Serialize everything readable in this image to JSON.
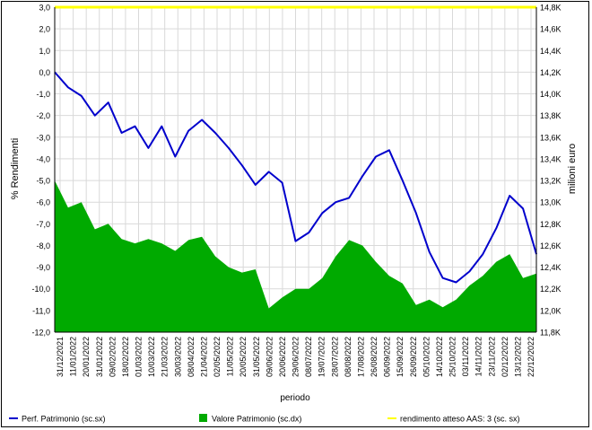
{
  "chart_data": {
    "type": "line",
    "xlabel": "periodo",
    "ylabel_left": "% Rendimenti",
    "ylabel_right": "milioni euro",
    "ylim_left": [
      -12,
      3
    ],
    "ylim_right": [
      11800,
      14800
    ],
    "yticks_left": [
      "3,0",
      "2,0",
      "1,0",
      "0,0",
      "-1,0",
      "-2,0",
      "-3,0",
      "-4,0",
      "-5,0",
      "-6,0",
      "-7,0",
      "-8,0",
      "-9,0",
      "-10,0",
      "-11,0",
      "-12,0"
    ],
    "yticks_right": [
      "14,8K",
      "14,6K",
      "14,4K",
      "14,2K",
      "14,0K",
      "13,8K",
      "13,6K",
      "13,4K",
      "13,2K",
      "13,0K",
      "12,8K",
      "12,6K",
      "12,4K",
      "12,2K",
      "12,0K",
      "11,8K"
    ],
    "x_tick_labels": [
      "31/12/2021",
      "11/01/2022",
      "20/01/2022",
      "31/01/2022",
      "09/02/2022",
      "18/02/2022",
      "01/03/2022",
      "10/03/2022",
      "21/03/2022",
      "30/03/2022",
      "08/04/2022",
      "21/04/2022",
      "02/05/2022",
      "11/05/2022",
      "20/05/2022",
      "31/05/2022",
      "09/06/2022",
      "20/06/2022",
      "29/06/2022",
      "08/07/2022",
      "19/07/2022",
      "28/07/2022",
      "08/08/2022",
      "17/08/2022",
      "26/08/2022",
      "06/09/2022",
      "15/09/2022",
      "26/09/2022",
      "05/10/2022",
      "14/10/2022",
      "25/10/2022",
      "03/11/2022",
      "14/11/2022",
      "23/11/2022",
      "02/12/2022",
      "13/12/2022",
      "22/12/2022"
    ],
    "grid": true,
    "legend_position": "bottom",
    "series": [
      {
        "name": "Perf. Patrimonio (sc.sx)",
        "axis": "left",
        "color": "#0000CC",
        "values": [
          0.0,
          -0.7,
          -1.1,
          -2.0,
          -1.4,
          -2.8,
          -2.5,
          -3.5,
          -2.5,
          -3.9,
          -2.7,
          -2.2,
          -2.8,
          -3.5,
          -4.3,
          -5.2,
          -4.6,
          -5.1,
          -7.8,
          -7.4,
          -6.5,
          -6.0,
          -5.8,
          -4.8,
          -3.9,
          -3.6,
          -5.0,
          -6.5,
          -8.3,
          -9.5,
          -9.7,
          -9.2,
          -8.4,
          -7.2,
          -5.7,
          -6.3,
          -8.4
        ]
      },
      {
        "name": "Valore  Patrimonio (sc.dx)",
        "axis": "right",
        "type": "area",
        "color": "#00AA00",
        "values": [
          13200,
          12950,
          13000,
          12750,
          12800,
          12660,
          12620,
          12660,
          12620,
          12550,
          12650,
          12680,
          12500,
          12400,
          12350,
          12380,
          12020,
          12120,
          12200,
          12200,
          12300,
          12500,
          12650,
          12600,
          12450,
          12320,
          12250,
          12050,
          12100,
          12030,
          12100,
          12230,
          12320,
          12450,
          12520,
          12300,
          12340
        ]
      },
      {
        "name": "rendimento atteso AAS: 3 (sc. sx)",
        "axis": "left",
        "color": "#FFFF00",
        "values": [
          3.0,
          3.0,
          3.0,
          3.0,
          3.0,
          3.0,
          3.0,
          3.0,
          3.0,
          3.0,
          3.0,
          3.0,
          3.0,
          3.0,
          3.0,
          3.0,
          3.0,
          3.0,
          3.0,
          3.0,
          3.0,
          3.0,
          3.0,
          3.0,
          3.0,
          3.0,
          3.0,
          3.0,
          3.0,
          3.0,
          3.0,
          3.0,
          3.0,
          3.0,
          3.0,
          3.0,
          3.0
        ]
      }
    ]
  }
}
